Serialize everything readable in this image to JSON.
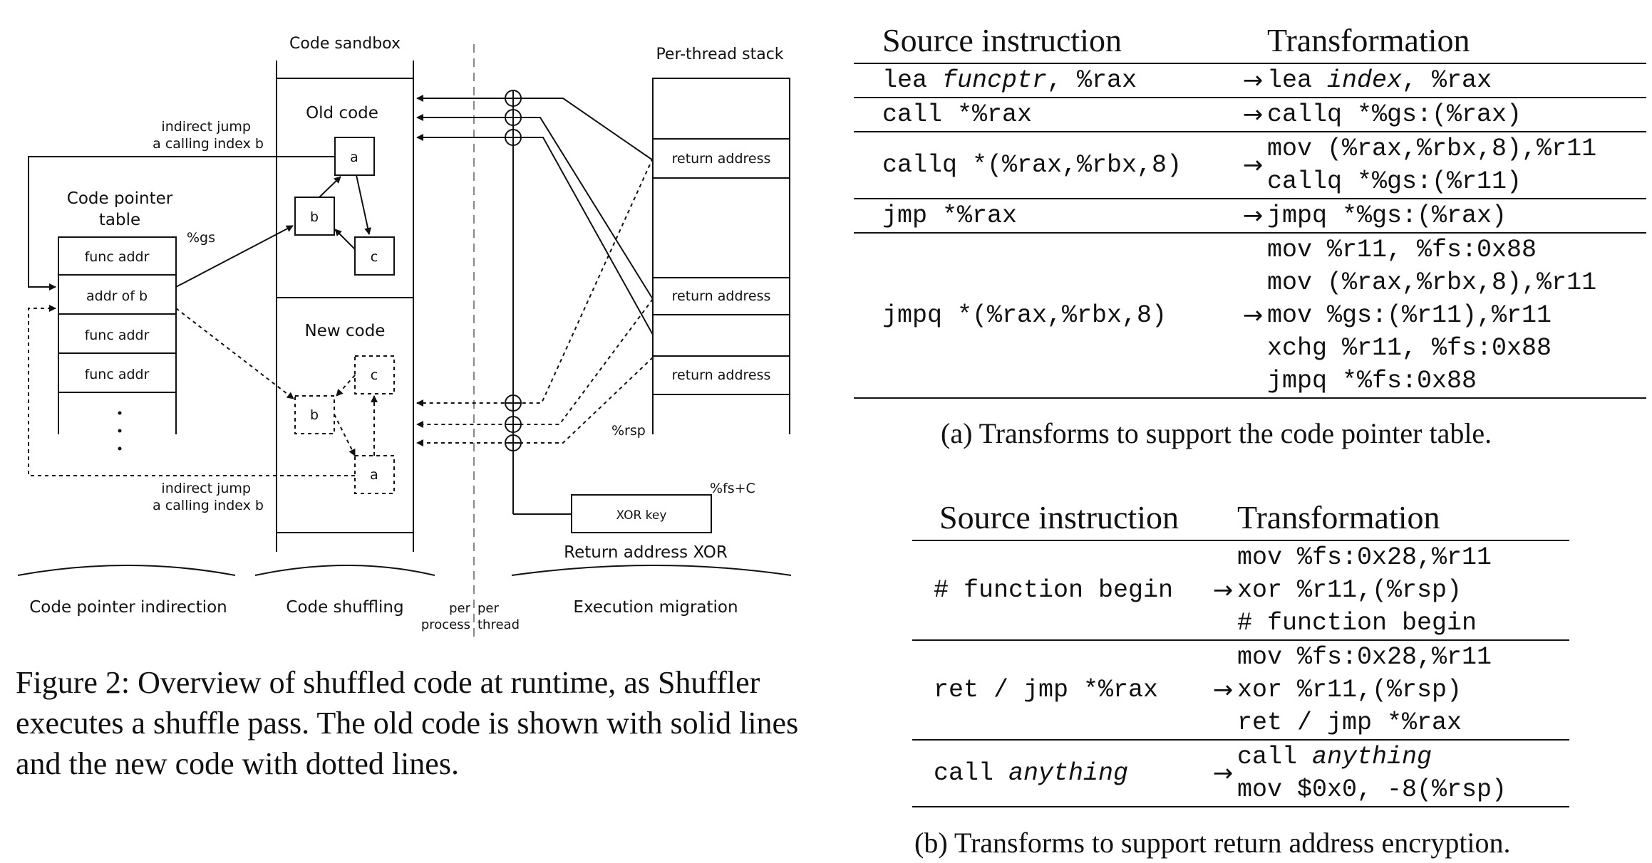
{
  "figure": {
    "labels": {
      "code_sandbox": "Code sandbox",
      "per_thread_stack": "Per-thread stack",
      "old_code": "Old code",
      "new_code": "New code",
      "code_pointer_table": [
        "Code pointer",
        "table"
      ],
      "gs": "%gs",
      "table_rows": [
        "func addr",
        "addr of b",
        "func addr",
        "func addr"
      ],
      "indirect_jump_top": [
        "indirect jump",
        "a calling index b"
      ],
      "indirect_jump_bottom": [
        "indirect jump",
        "a calling index b"
      ],
      "old_nodes": [
        "a",
        "b",
        "c"
      ],
      "new_nodes": [
        "c",
        "b",
        "a"
      ],
      "return_address": [
        "return address",
        "return address",
        "return address"
      ],
      "rsp": "%rsp",
      "fs_c": "%fs+C",
      "xor_key": "XOR key",
      "return_address_xor": "Return address XOR",
      "section_labels": [
        "Code pointer indirection",
        "Code shuffling",
        "Execution migration"
      ],
      "per_process": [
        "per",
        "process"
      ],
      "per_thread": [
        "per",
        "thread"
      ]
    },
    "caption": "Figure 2: Overview of shuffled code at runtime, as Shuffler executes a shuffle pass. The old code is shown with solid lines and the new code with dotted lines."
  },
  "table_a": {
    "headers": [
      "Source instruction",
      "Transformation"
    ],
    "arrow": "→",
    "rows": [
      {
        "src": [
          "lea ",
          "funcptr",
          ", %rax"
        ],
        "dst": [
          [
            "lea ",
            "index",
            ", %rax"
          ]
        ]
      },
      {
        "src": [
          "call *%rax"
        ],
        "dst": [
          [
            "callq *%gs:(%rax)"
          ]
        ]
      },
      {
        "src": [
          "callq *(%rax,%rbx,8)"
        ],
        "dst": [
          [
            "mov (%rax,%rbx,8),%r11"
          ],
          [
            "callq *%gs:(%r11)"
          ]
        ]
      },
      {
        "src": [
          "jmp *%rax"
        ],
        "dst": [
          [
            "jmpq *%gs:(%rax)"
          ]
        ]
      },
      {
        "src": [
          "jmpq *(%rax,%rbx,8)"
        ],
        "dst": [
          [
            "mov %r11, %fs:0x88"
          ],
          [
            "mov (%rax,%rbx,8),%r11"
          ],
          [
            "mov %gs:(%r11),%r11"
          ],
          [
            "xchg %r11, %fs:0x88"
          ],
          [
            "jmpq *%fs:0x88"
          ]
        ]
      }
    ],
    "caption": "(a) Transforms to support the code pointer table."
  },
  "table_b": {
    "headers": [
      "Source instruction",
      "Transformation"
    ],
    "arrow": "→",
    "rows": [
      {
        "src": [
          "# function begin"
        ],
        "dst": [
          [
            "mov %fs:0x28,%r11"
          ],
          [
            "xor %r11,(%rsp)"
          ],
          [
            "# function begin"
          ]
        ]
      },
      {
        "src": [
          "ret / jmp *%rax"
        ],
        "dst": [
          [
            "mov %fs:0x28,%r11"
          ],
          [
            "xor %r11,(%rsp)"
          ],
          [
            "ret / jmp *%rax"
          ]
        ]
      },
      {
        "src": [
          "call ",
          "anything"
        ],
        "dst": [
          [
            "call ",
            "anything"
          ],
          [
            "mov $0x0, -8(%rsp)"
          ]
        ]
      }
    ],
    "caption": "(b) Transforms to support return address encryption."
  }
}
